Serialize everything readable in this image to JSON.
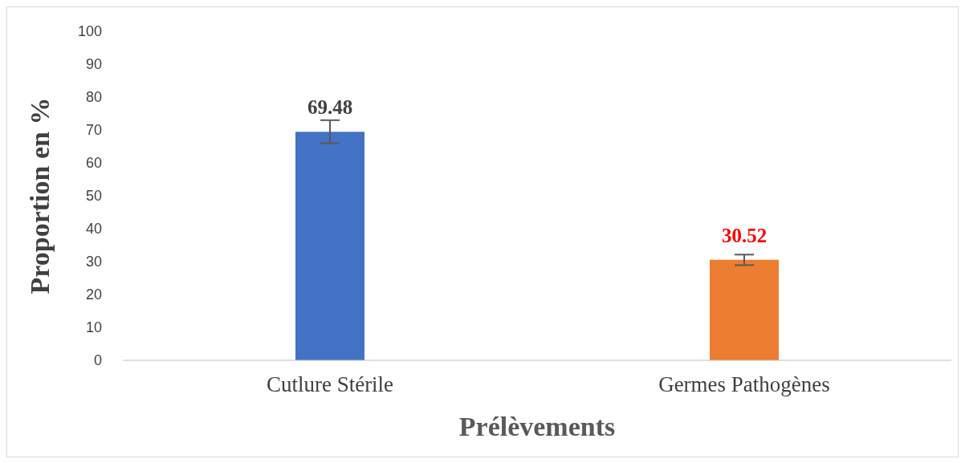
{
  "chart_data": {
    "type": "bar",
    "xlabel": "Prélèvements",
    "ylabel": "Proportion en %",
    "categories": [
      "Cutlure Stérile",
      "Germes Pathogènes"
    ],
    "values": [
      69.48,
      30.52
    ],
    "colors": [
      "#4472c4",
      "#ed7d31"
    ],
    "errors": [
      3.5,
      1.6
    ],
    "data_labels": true,
    "ylim": [
      0,
      100
    ],
    "yticks": [
      0,
      10,
      20,
      30,
      40,
      50,
      60,
      70,
      80,
      90,
      100
    ],
    "grid": false,
    "legend": false
  }
}
